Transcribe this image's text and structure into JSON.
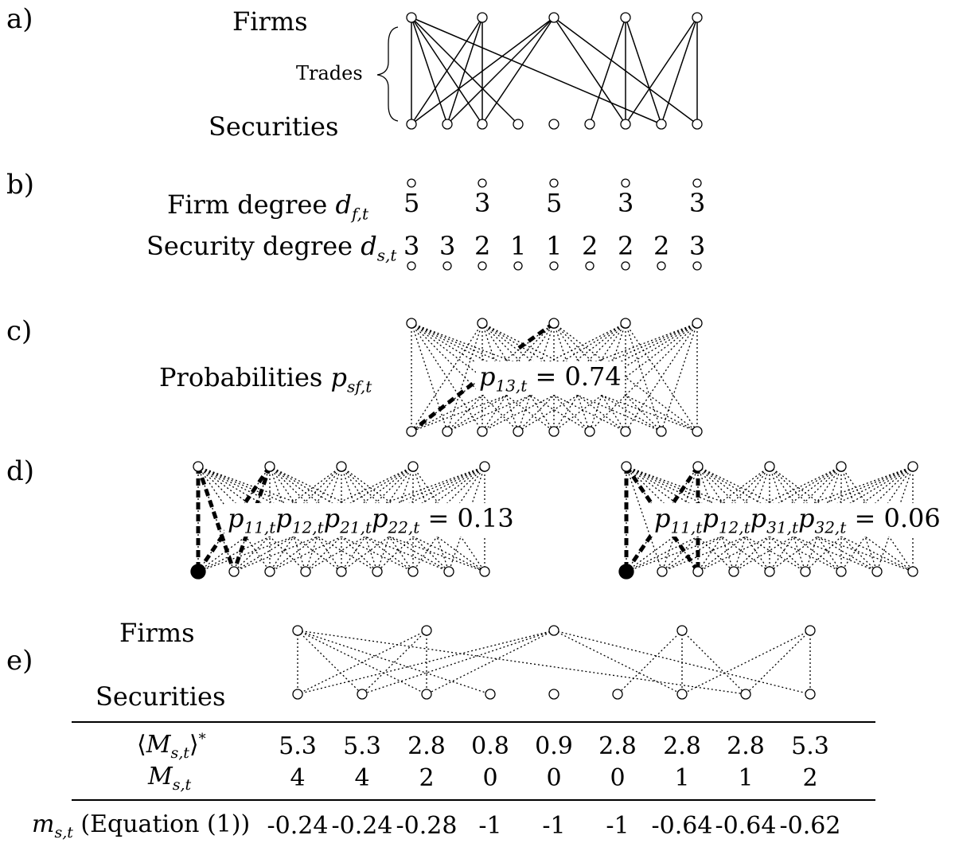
{
  "panels": {
    "a": {
      "label": "a)",
      "firms": "Firms",
      "trades": "Trades",
      "securities": "Securities"
    },
    "b": {
      "label": "b)",
      "firm_degree_label": "Firm degree d_f,t",
      "security_degree_label": "Security degree d_s,t",
      "firm_degrees": [
        "5",
        "3",
        "5",
        "3",
        "3"
      ],
      "security_degrees": [
        "3",
        "3",
        "2",
        "1",
        "1",
        "2",
        "2",
        "2",
        "3"
      ]
    },
    "c": {
      "label": "c)",
      "prob_label": "Probabilities p_sf,t",
      "annotation": "p_13,t = 0.74"
    },
    "d": {
      "label": "d)",
      "left_annotation": "p_11,t p_12,t p_21,t p_22,t = 0.13",
      "right_annotation": "p_11,t p_12,t p_31,t p_32,t = 0.06"
    },
    "e": {
      "label": "e)",
      "firms": "Firms",
      "securities": "Securities",
      "row1_label": "⟨M_s,t⟩*",
      "row2_label": "M_s,t",
      "row3_label": "m_s,t (Equation (1))",
      "expected_M": [
        "5.3",
        "5.3",
        "2.8",
        "0.8",
        "0.9",
        "2.8",
        "2.8",
        "2.8",
        "5.3"
      ],
      "observed_M": [
        "4",
        "4",
        "2",
        "0",
        "0",
        "0",
        "1",
        "1",
        "2"
      ],
      "m_values": [
        "-0.24",
        "-0.24",
        "-0.28",
        "-1",
        "-1",
        "-1",
        "-0.64",
        "-0.64",
        "-0.62"
      ]
    }
  }
}
